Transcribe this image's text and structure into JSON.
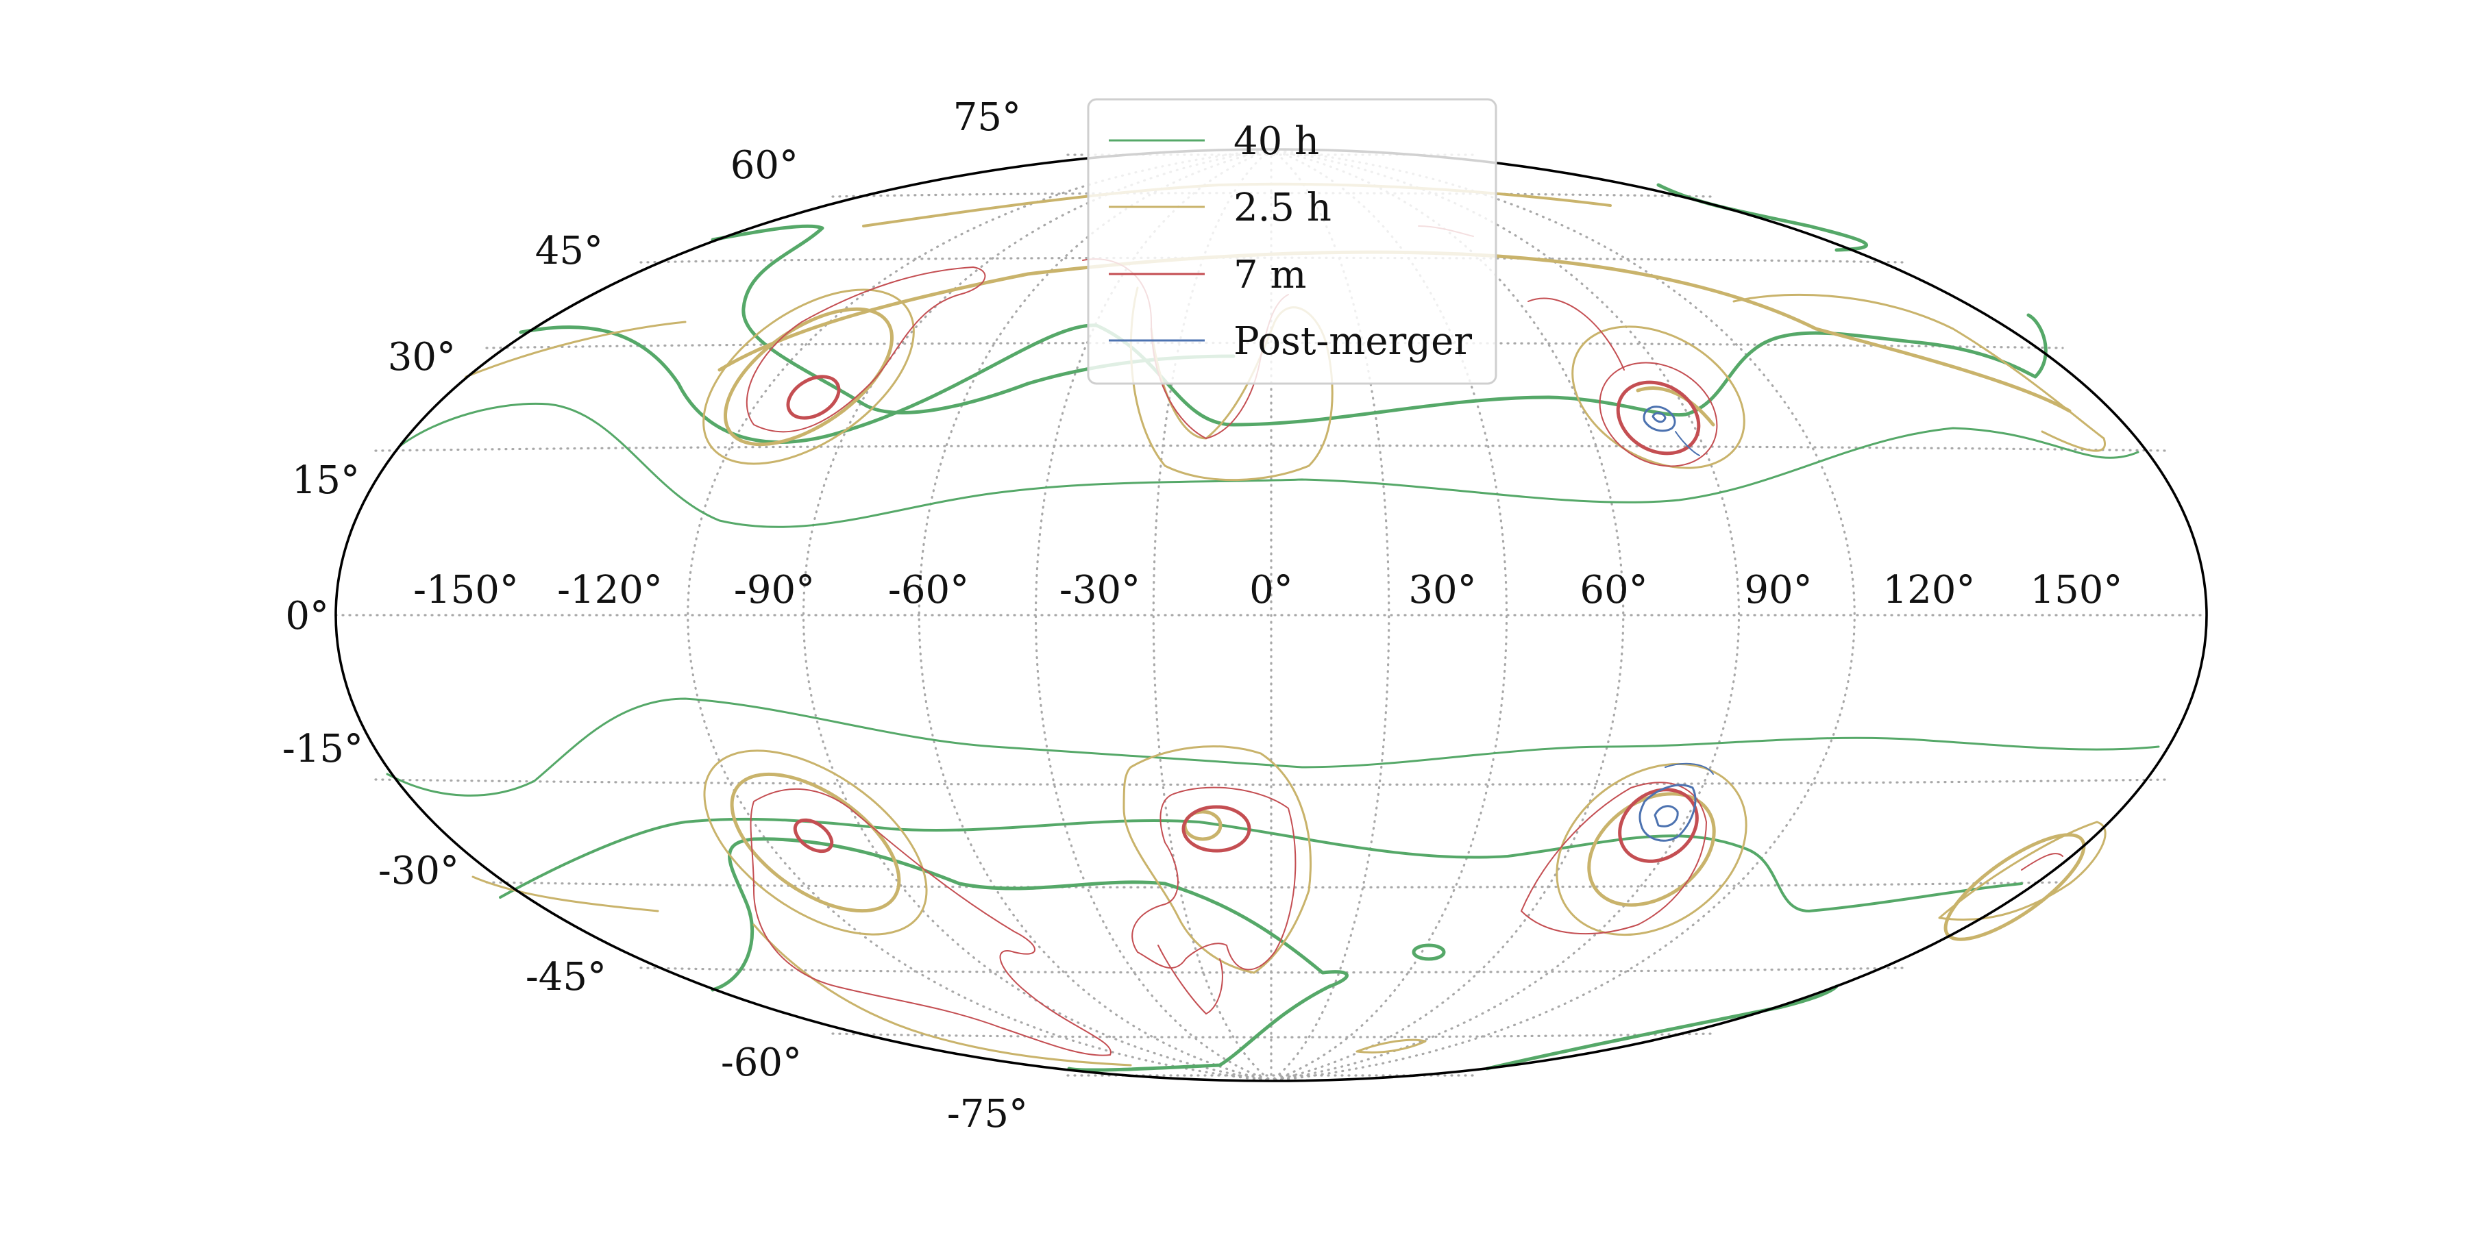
{
  "map": {
    "projection": "mollweide",
    "grid": true,
    "legend_position": "top-center",
    "longitude_ticks": [
      "-150°",
      "-120°",
      "-90°",
      "-60°",
      "-30°",
      "0°",
      "30°",
      "60°",
      "90°",
      "120°",
      "150°"
    ],
    "latitude_ticks": [
      "75°",
      "60°",
      "45°",
      "30°",
      "15°",
      "0°",
      "-15°",
      "-30°",
      "-45°",
      "-60°",
      "-75°"
    ]
  },
  "legend": {
    "entries": [
      {
        "label": "40 h",
        "color": "#55a868"
      },
      {
        "label": "2.5 h",
        "color": "#c9b36b"
      },
      {
        "label": "7 m",
        "color": "#c44e52"
      },
      {
        "label": "Post-merger",
        "color": "#4c72b0"
      }
    ]
  },
  "colors": {
    "series_40h": "#55a868",
    "series_2_5h": "#c9b36b",
    "series_7m": "#c44e52",
    "series_post_merger": "#4c72b0",
    "grid": "#a8a8a8",
    "outline": "#000000"
  }
}
